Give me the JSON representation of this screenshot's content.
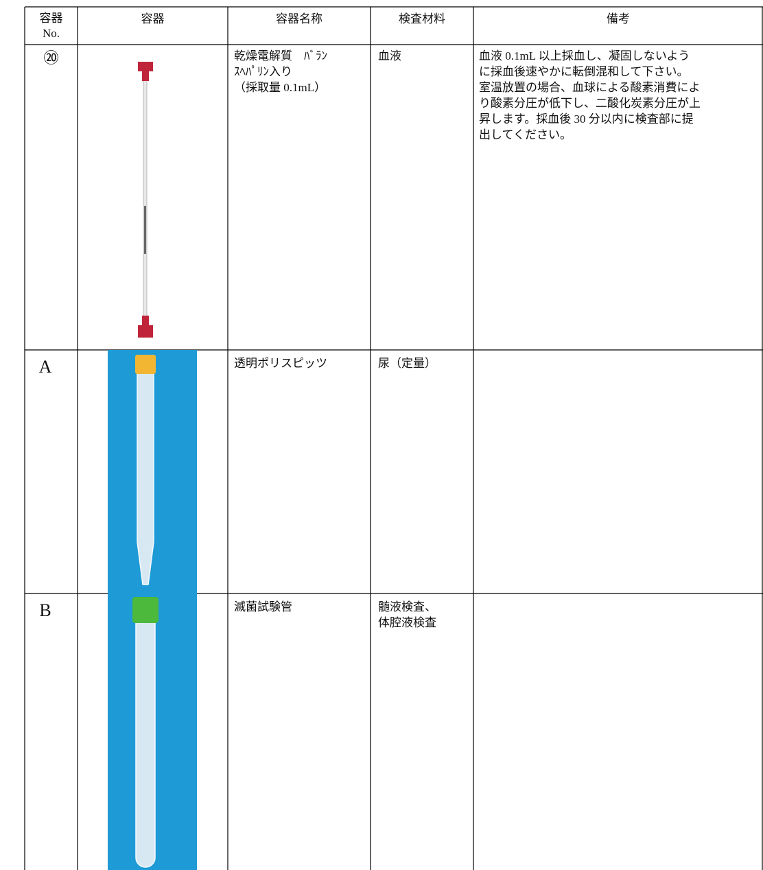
{
  "table": {
    "header": [
      [
        "容器",
        "No."
      ],
      "容器",
      "容器名称",
      "検査材料",
      "備考"
    ],
    "rows": [
      {
        "no": "⑳",
        "name": [
          "乾燥電解質　ﾊﾞﾗﾝ",
          "ｽﾍﾊﾟﾘﾝ入り",
          "（採取量 0.1mL）"
        ],
        "material": [
          "血液"
        ],
        "note": [
          "血液 0.1mL 以上採血し、凝固しないよう",
          "に採血後速やかに転倒混和して下さい。",
          "室温放置の場合、血球による酸素消費によ",
          "り酸素分圧が低下し、二酸化炭素分圧が上",
          "昇します。採血後 30 分以内に検査部に提",
          "出してください。"
        ]
      },
      {
        "no": "A",
        "name": [
          "透明ポリスピッツ"
        ],
        "material": [
          "尿（定量）"
        ],
        "note": []
      },
      {
        "no": "B",
        "name": [
          "滅菌試験管"
        ],
        "material": [
          "髄液検査、",
          "体腔液検査"
        ],
        "note": []
      }
    ]
  }
}
